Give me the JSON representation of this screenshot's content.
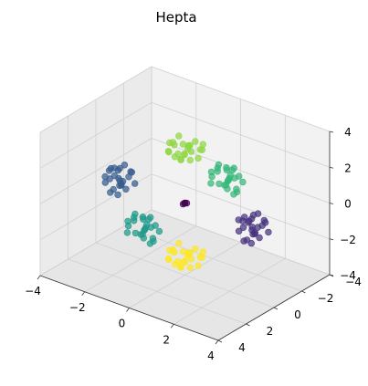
{
  "chart_data": {
    "type": "scatter",
    "projection": "3d",
    "title": "Hepta",
    "xlabel": "",
    "ylabel": "",
    "zlabel": "",
    "xlim": [
      -4,
      4
    ],
    "ylim": [
      -4,
      4
    ],
    "zlim": [
      -4,
      4
    ],
    "grid": true,
    "colormap": "viridis",
    "x_ticks": [
      "−4",
      "−2",
      "0",
      "2",
      "4"
    ],
    "y_ticks": [
      "−4",
      "−2",
      "0",
      "2",
      "4"
    ],
    "z_ticks": [
      "−4",
      "−2",
      "0",
      "2",
      "4"
    ],
    "clusters": [
      {
        "center": [
          0,
          0,
          0
        ],
        "color": "#440154",
        "points": [
          [
            0.05,
            -0.05,
            0.02
          ],
          [
            -0.05,
            0.05,
            -0.03
          ],
          [
            0.02,
            0.03,
            0.05
          ],
          [
            -0.03,
            -0.02,
            0.0
          ]
        ]
      },
      {
        "center": [
          3,
          0,
          0
        ],
        "color": "#46327e",
        "points": [
          [
            3.4,
            0.2,
            0.3
          ],
          [
            2.7,
            -0.3,
            0.1
          ],
          [
            3.1,
            0.5,
            -0.4
          ],
          [
            2.9,
            -0.4,
            -0.5
          ],
          [
            3.5,
            -0.1,
            0.6
          ],
          [
            2.6,
            0.3,
            0.4
          ],
          [
            3.2,
            0.1,
            -0.2
          ],
          [
            2.8,
            0.6,
            0.0
          ],
          [
            3.3,
            -0.5,
            0.2
          ],
          [
            3.0,
            0.0,
            0.5
          ],
          [
            2.5,
            -0.2,
            -0.3
          ],
          [
            3.6,
            0.4,
            -0.1
          ],
          [
            3.1,
            -0.3,
            0.7
          ],
          [
            2.9,
            0.4,
            -0.6
          ],
          [
            3.4,
            0.6,
            0.5
          ],
          [
            2.7,
            -0.6,
            0.3
          ],
          [
            3.2,
            0.3,
            0.1
          ],
          [
            3.0,
            -0.1,
            -0.4
          ],
          [
            2.8,
            0.2,
            0.6
          ],
          [
            3.5,
            -0.4,
            -0.2
          ],
          [
            3.3,
            0.5,
            -0.5
          ],
          [
            2.6,
            0.0,
            0.2
          ],
          [
            3.1,
            -0.6,
            -0.1
          ],
          [
            2.9,
            0.1,
            0.3
          ]
        ]
      },
      {
        "center": [
          -3,
          0,
          0
        ],
        "color": "#365c8d",
        "points": [
          [
            -2.6,
            0.3,
            0.2
          ],
          [
            -3.3,
            -0.2,
            0.4
          ],
          [
            -2.9,
            0.5,
            -0.3
          ],
          [
            -3.1,
            -0.4,
            -0.5
          ],
          [
            -2.5,
            -0.1,
            0.6
          ],
          [
            -3.4,
            0.3,
            0.1
          ],
          [
            -2.8,
            0.1,
            -0.2
          ],
          [
            -3.2,
            0.6,
            0.0
          ],
          [
            -2.7,
            -0.5,
            0.3
          ],
          [
            -3.0,
            0.0,
            0.5
          ],
          [
            -3.5,
            -0.2,
            -0.3
          ],
          [
            -2.4,
            0.4,
            -0.1
          ],
          [
            -2.9,
            -0.3,
            0.7
          ],
          [
            -3.1,
            0.4,
            -0.6
          ],
          [
            -2.6,
            0.6,
            0.5
          ],
          [
            -3.3,
            -0.6,
            0.2
          ],
          [
            -2.8,
            0.2,
            0.1
          ],
          [
            -3.0,
            -0.1,
            -0.4
          ],
          [
            -3.2,
            0.2,
            0.6
          ],
          [
            -2.5,
            -0.4,
            -0.2
          ],
          [
            -2.7,
            0.5,
            -0.5
          ],
          [
            -3.4,
            0.0,
            0.3
          ],
          [
            -2.9,
            -0.6,
            -0.1
          ],
          [
            -3.1,
            0.1,
            0.2
          ]
        ]
      },
      {
        "center": [
          0,
          3,
          0
        ],
        "color": "#1f9a8a",
        "points": [
          [
            0.3,
            3.4,
            0.2
          ],
          [
            -0.2,
            2.7,
            0.4
          ],
          [
            0.5,
            3.1,
            -0.3
          ],
          [
            -0.4,
            2.9,
            -0.5
          ],
          [
            -0.1,
            3.5,
            0.6
          ],
          [
            0.3,
            2.6,
            0.1
          ],
          [
            0.1,
            3.2,
            -0.2
          ],
          [
            0.6,
            2.8,
            0.0
          ],
          [
            -0.5,
            3.3,
            0.3
          ],
          [
            0.0,
            3.0,
            0.5
          ],
          [
            -0.2,
            2.5,
            -0.3
          ],
          [
            0.4,
            3.6,
            -0.1
          ],
          [
            -0.3,
            3.1,
            0.7
          ],
          [
            0.4,
            2.9,
            -0.6
          ],
          [
            0.6,
            3.4,
            0.5
          ],
          [
            -0.6,
            2.7,
            0.2
          ],
          [
            0.2,
            3.2,
            0.1
          ],
          [
            -0.1,
            3.0,
            -0.4
          ],
          [
            0.2,
            2.8,
            0.6
          ],
          [
            -0.4,
            3.5,
            -0.2
          ],
          [
            0.5,
            3.3,
            -0.5
          ],
          [
            0.0,
            2.6,
            0.3
          ],
          [
            -0.6,
            3.1,
            -0.1
          ],
          [
            0.1,
            2.9,
            0.2
          ]
        ]
      },
      {
        "center": [
          0,
          -3,
          0
        ],
        "color": "#35b779",
        "points": [
          [
            0.3,
            -2.6,
            0.2
          ],
          [
            -0.2,
            -3.3,
            0.4
          ],
          [
            0.5,
            -2.9,
            -0.3
          ],
          [
            -0.4,
            -3.1,
            -0.5
          ],
          [
            -0.1,
            -2.5,
            0.6
          ],
          [
            0.3,
            -3.4,
            0.1
          ],
          [
            0.1,
            -2.8,
            -0.2
          ],
          [
            0.6,
            -3.2,
            0.0
          ],
          [
            -0.5,
            -2.7,
            0.3
          ],
          [
            0.0,
            -3.0,
            0.5
          ],
          [
            -0.2,
            -3.5,
            -0.3
          ],
          [
            0.4,
            -2.4,
            -0.1
          ],
          [
            -0.3,
            -2.9,
            0.7
          ],
          [
            0.4,
            -3.1,
            -0.6
          ],
          [
            0.6,
            -2.6,
            0.5
          ],
          [
            -0.6,
            -3.3,
            0.2
          ],
          [
            0.2,
            -2.8,
            0.1
          ],
          [
            -0.1,
            -3.0,
            -0.4
          ],
          [
            0.2,
            -3.2,
            0.6
          ],
          [
            -0.4,
            -2.5,
            -0.2
          ],
          [
            0.5,
            -2.7,
            -0.5
          ],
          [
            0.0,
            -3.4,
            0.3
          ],
          [
            -0.6,
            -2.9,
            -0.1
          ],
          [
            0.1,
            -3.1,
            0.2
          ]
        ]
      },
      {
        "center": [
          0,
          0,
          3
        ],
        "color": "#8fd744",
        "points": [
          [
            0.3,
            0.2,
            3.4
          ],
          [
            -0.2,
            0.4,
            2.7
          ],
          [
            0.5,
            -0.3,
            3.1
          ],
          [
            -0.4,
            -0.5,
            2.9
          ],
          [
            -0.1,
            0.6,
            3.5
          ],
          [
            0.3,
            0.1,
            2.6
          ],
          [
            0.1,
            -0.2,
            3.2
          ],
          [
            0.6,
            0.0,
            2.8
          ],
          [
            -0.5,
            0.3,
            3.3
          ],
          [
            0.0,
            0.5,
            3.0
          ],
          [
            -0.2,
            -0.3,
            2.5
          ],
          [
            0.4,
            -0.1,
            3.6
          ],
          [
            -0.3,
            0.7,
            3.1
          ],
          [
            0.4,
            -0.6,
            2.9
          ],
          [
            0.6,
            0.5,
            3.4
          ],
          [
            -0.6,
            0.2,
            2.7
          ],
          [
            0.2,
            0.1,
            3.2
          ],
          [
            -0.1,
            -0.4,
            3.0
          ],
          [
            0.2,
            0.6,
            2.8
          ],
          [
            -0.4,
            -0.2,
            3.5
          ],
          [
            0.5,
            -0.5,
            3.3
          ],
          [
            0.0,
            0.3,
            2.6
          ],
          [
            -0.6,
            -0.1,
            3.1
          ],
          [
            0.1,
            0.2,
            2.9
          ]
        ]
      },
      {
        "center": [
          0,
          0,
          -3
        ],
        "color": "#fde725",
        "points": [
          [
            0.3,
            0.2,
            -2.6
          ],
          [
            -0.2,
            0.4,
            -3.3
          ],
          [
            0.5,
            -0.3,
            -2.9
          ],
          [
            -0.4,
            -0.5,
            -3.1
          ],
          [
            -0.1,
            0.6,
            -2.5
          ],
          [
            0.3,
            0.1,
            -3.4
          ],
          [
            0.1,
            -0.2,
            -2.8
          ],
          [
            0.6,
            0.0,
            -3.2
          ],
          [
            -0.5,
            0.3,
            -2.7
          ],
          [
            0.0,
            0.5,
            -3.0
          ],
          [
            -0.2,
            -0.3,
            -3.5
          ],
          [
            0.4,
            -0.1,
            -2.4
          ],
          [
            -0.3,
            0.7,
            -2.9
          ],
          [
            0.4,
            -0.6,
            -3.1
          ],
          [
            0.6,
            0.5,
            -2.6
          ],
          [
            -0.6,
            0.2,
            -3.3
          ],
          [
            0.2,
            0.1,
            -2.8
          ],
          [
            -0.1,
            -0.4,
            -3.0
          ],
          [
            0.2,
            0.6,
            -3.2
          ],
          [
            -0.4,
            -0.2,
            -2.5
          ],
          [
            0.5,
            -0.5,
            -2.7
          ],
          [
            0.0,
            0.3,
            -3.4
          ],
          [
            -0.6,
            -0.1,
            -2.9
          ],
          [
            0.1,
            0.2,
            -3.1
          ]
        ]
      }
    ]
  }
}
